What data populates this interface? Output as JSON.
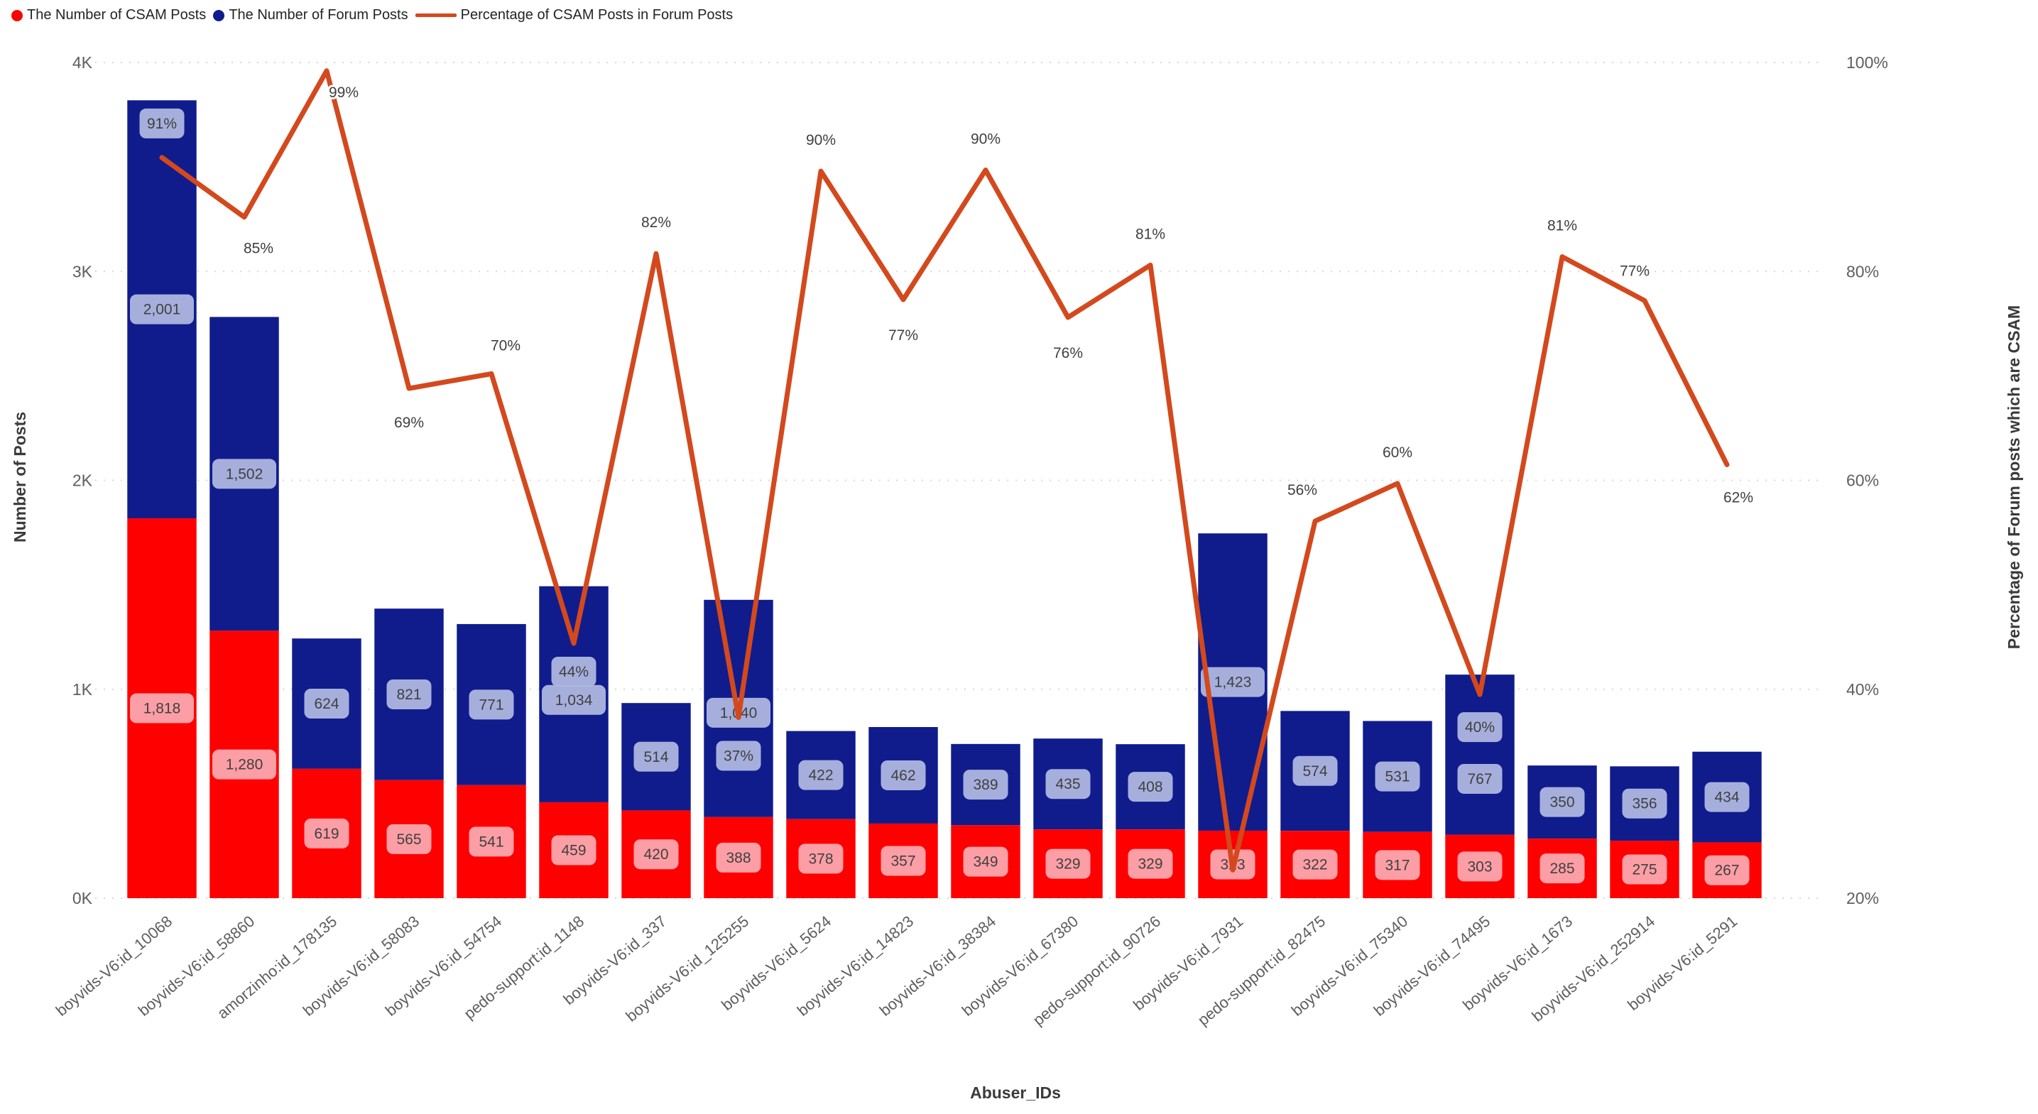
{
  "legend": {
    "items": [
      {
        "label": "The Number of CSAM Posts",
        "marker": "circle",
        "color": "#FE0000"
      },
      {
        "label": "The Number of Forum Posts",
        "marker": "circle",
        "color": "#101C8C"
      },
      {
        "label": "Percentage of CSAM Posts in Forum Posts",
        "marker": "line",
        "color": "#D3491D"
      }
    ]
  },
  "chart_data": {
    "type": "combo: stacked bar + line",
    "title": "",
    "xlabel": "Abuser_IDs",
    "ylabel_left": "Number of Posts",
    "ylabel_right": "Percentage of Forum posts which are CSAM",
    "y_left": {
      "ticks": [
        "0K",
        "1K",
        "2K",
        "3K",
        "4K"
      ],
      "min": 0,
      "max": 4000
    },
    "y_right": {
      "ticks": [
        "20%",
        "40%",
        "60%",
        "80%",
        "100%"
      ],
      "min": 20,
      "max": 100
    },
    "grid": "dotted-horizontal",
    "legend_position": "top-left",
    "categories": [
      "boyvids-V6:id_10068",
      "boyvids-V6:id_58860",
      "amorzinho:id_178135",
      "boyvids-V6:id_58083",
      "boyvids-V6:id_54754",
      "pedo-support:id_1148",
      "boyvids-V6:id_337",
      "boyvids-V6:id_125255",
      "boyvids-V6:id_5624",
      "boyvids-V6:id_14823",
      "boyvids-V6:id_38384",
      "boyvids-V6:id_67380",
      "pedo-support:id_90726",
      "boyvids-V6:id_7931",
      "pedo-support:id_82475",
      "boyvids-V6:id_75340",
      "boyvids-V6:id_74495",
      "boyvids-V6:id_1673",
      "boyvids-V6:id_252914",
      "boyvids-V6:id_5291"
    ],
    "series": [
      {
        "name": "The Number of CSAM Posts",
        "type": "bar",
        "color": "#FE0000",
        "values": [
          1818,
          1280,
          619,
          565,
          541,
          459,
          420,
          388,
          378,
          357,
          349,
          329,
          329,
          323,
          322,
          317,
          303,
          285,
          275,
          267
        ],
        "labels": [
          "1,818",
          "1,280",
          "619",
          "565",
          "541",
          "459",
          "420",
          "388",
          "378",
          "357",
          "349",
          "329",
          "329",
          "323",
          "322",
          "317",
          "303",
          "285",
          "275",
          "267"
        ],
        "label_bg": "#FCABB3"
      },
      {
        "name": "The Number of Forum Posts",
        "type": "bar",
        "color": "#101C8C",
        "values": [
          2001,
          1502,
          624,
          821,
          771,
          1034,
          514,
          1040,
          422,
          462,
          389,
          435,
          408,
          1423,
          574,
          531,
          767,
          350,
          356,
          434
        ],
        "labels": [
          "2,001",
          "1,502",
          "624",
          "821",
          "771",
          "1,034",
          "514",
          "1,040",
          "422",
          "462",
          "389",
          "435",
          "408",
          "1,423",
          "574",
          "531",
          "767",
          "350",
          "356",
          "434"
        ],
        "label_bg": "#AFB7DF",
        "label_dy": [
          0,
          0,
          0,
          0,
          0,
          8,
          0,
          6,
          0,
          0,
          0,
          0,
          0,
          0,
          0,
          0,
          34,
          0,
          0,
          0
        ]
      },
      {
        "name": "Percentage of CSAM Posts in Forum Posts",
        "type": "line",
        "color": "#D3491D",
        "values": [
          90.9,
          85.2,
          99.2,
          68.8,
          70.2,
          44.4,
          81.7,
          37.3,
          89.6,
          77.3,
          89.7,
          75.6,
          80.6,
          22.7,
          56.1,
          59.7,
          39.5,
          81.4,
          77.2,
          61.5
        ],
        "labels": [
          "91%",
          "85%",
          "99%",
          "69%",
          "70%",
          "44%",
          "82%",
          "37%",
          "90%",
          "77%",
          "90%",
          "76%",
          "81%",
          "",
          "56%",
          "60%",
          "40%",
          "81%",
          "77%",
          "62%"
        ],
        "label_boxed": [
          true,
          false,
          false,
          false,
          false,
          true,
          false,
          true,
          false,
          false,
          false,
          false,
          false,
          false,
          false,
          false,
          true,
          false,
          false,
          false
        ],
        "label_offset": [
          [
            0,
            -48
          ],
          [
            20,
            44
          ],
          [
            24,
            30
          ],
          [
            0,
            48
          ],
          [
            20,
            -40
          ],
          [
            0,
            40
          ],
          [
            0,
            -44
          ],
          [
            0,
            54
          ],
          [
            0,
            -44
          ],
          [
            0,
            50
          ],
          [
            0,
            -44
          ],
          [
            0,
            50
          ],
          [
            0,
            -44
          ],
          [
            0,
            0
          ],
          [
            -18,
            -44
          ],
          [
            0,
            -44
          ],
          [
            0,
            46
          ],
          [
            0,
            -44
          ],
          [
            -14,
            -42
          ],
          [
            16,
            46
          ]
        ],
        "label_bg": "#AFB7DF"
      }
    ],
    "colors": {
      "grid": "#D8D8D8",
      "tick": "#605E5C",
      "axis_title": "#3A3A3A",
      "value_label_text": "#404040",
      "pct_label_text": "#3F3F3F"
    }
  }
}
